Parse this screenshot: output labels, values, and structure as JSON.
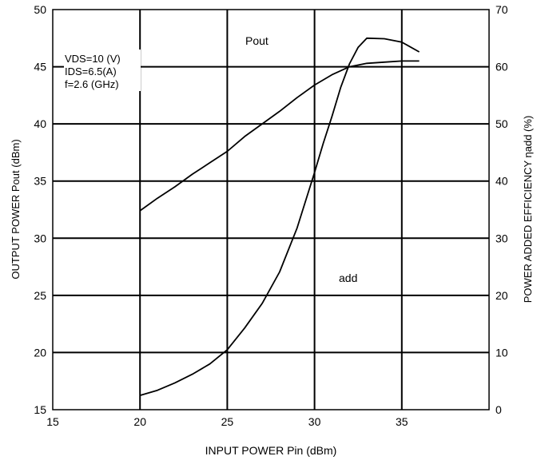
{
  "chart_data": {
    "type": "line",
    "xlabel": "INPUT POWER Pin (dBm)",
    "ylabel": "OUTPUT POWER Pout (dBm)",
    "y2label": "POWER ADDED EFFICIENCY ηadd (%)",
    "xlim": [
      15,
      40
    ],
    "ylim": [
      15,
      50
    ],
    "y2lim": [
      0,
      70
    ],
    "xticks": [
      15,
      20,
      25,
      30,
      35
    ],
    "yticks": [
      15,
      20,
      25,
      30,
      35,
      40,
      45,
      50
    ],
    "y2ticks": [
      0,
      10,
      20,
      30,
      40,
      50,
      60,
      70
    ],
    "grid": true,
    "annotations": [
      "VDS=10 (V)",
      "IDS=6.5(A)",
      "f=2.6 (GHz)"
    ],
    "series": [
      {
        "name": "Pout",
        "axis": "left",
        "x": [
          20,
          21,
          22,
          23,
          24,
          25,
          26,
          27,
          28,
          29,
          30,
          31,
          32,
          33,
          34,
          35,
          36
        ],
        "y": [
          32.4,
          33.5,
          34.5,
          35.6,
          36.6,
          37.6,
          38.9,
          40.0,
          41.1,
          42.3,
          43.4,
          44.3,
          45.0,
          45.3,
          45.4,
          45.5,
          45.5
        ]
      },
      {
        "name": "add",
        "axis": "right",
        "x": [
          20,
          21,
          22,
          23,
          24,
          25,
          26,
          27,
          28,
          29,
          30,
          30.5,
          31,
          31.5,
          32,
          32.5,
          33,
          34,
          35,
          36
        ],
        "y": [
          2.5,
          3.4,
          4.7,
          6.2,
          8.0,
          10.5,
          14.3,
          18.6,
          24.1,
          31.8,
          41.5,
          46.6,
          51.3,
          56.4,
          60.5,
          63.4,
          65.0,
          64.9,
          64.3,
          62.6
        ]
      }
    ]
  }
}
